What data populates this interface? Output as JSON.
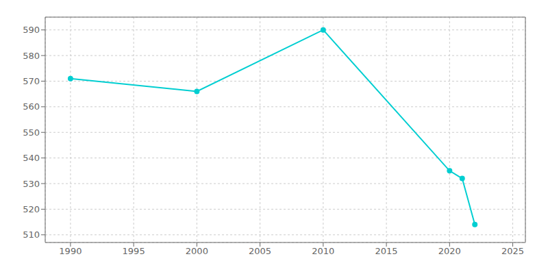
{
  "chart_data": {
    "type": "line",
    "x": [
      1990,
      2000,
      2010,
      2020,
      2021,
      2022
    ],
    "values": [
      571,
      566,
      590,
      535,
      532,
      514
    ],
    "color": "#00CED1",
    "marker": "circle",
    "xlim": [
      1988,
      2026
    ],
    "ylim": [
      507,
      595
    ],
    "xticks": [
      1990,
      1995,
      2000,
      2005,
      2010,
      2015,
      2020,
      2025
    ],
    "yticks": [
      510,
      520,
      530,
      540,
      550,
      560,
      570,
      580,
      590
    ],
    "grid": true
  }
}
